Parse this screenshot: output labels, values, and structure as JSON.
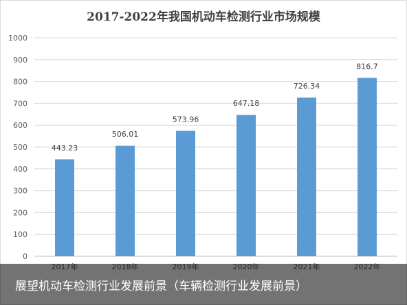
{
  "chart_data": {
    "type": "bar",
    "title": "2017-2022年我国机动车检测行业市场规模",
    "xlabel": "",
    "ylabel": "",
    "categories": [
      "2017年",
      "2018年",
      "2019年",
      "2020年",
      "2021年",
      "2022年"
    ],
    "values": [
      443.23,
      506.01,
      573.96,
      647.18,
      726.34,
      816.7
    ],
    "value_labels": [
      "443.23",
      "506.01",
      "573.96",
      "647.18",
      "726.34",
      "816.7"
    ],
    "ylim": [
      0,
      1000
    ],
    "yticks": [
      0,
      100,
      200,
      300,
      400,
      500,
      600,
      700,
      800,
      900,
      1000
    ],
    "grid": true,
    "bar_color": "#5b9bd5"
  },
  "caption": {
    "text": "展望机动车检测行业发展前景（车辆检测行业发展前景）"
  }
}
